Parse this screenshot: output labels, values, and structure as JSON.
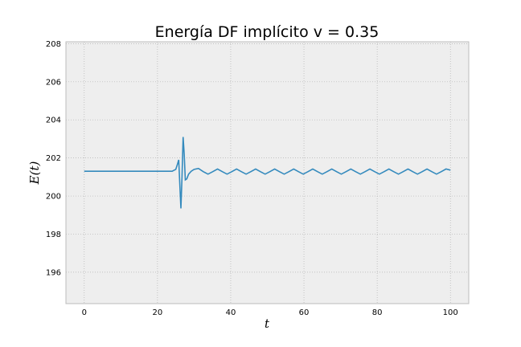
{
  "chart_data": {
    "type": "line",
    "title": "Energía DF implícito v = 0.35",
    "xlabel": "t",
    "ylabel": "E(t)",
    "xlim": [
      -5,
      105
    ],
    "ylim": [
      194.35,
      208.1
    ],
    "xticks": [
      0,
      20,
      40,
      60,
      80,
      100
    ],
    "yticks": [
      196,
      198,
      200,
      202,
      204,
      206,
      208
    ],
    "grid": true,
    "series": [
      {
        "color": "#348ABD",
        "x": [
          0,
          5,
          10,
          15,
          20,
          24,
          25,
          25.5,
          25.8,
          26.1,
          26.4,
          26.7,
          27,
          27.3,
          27.6,
          28,
          28.5,
          29.2,
          30,
          31.2,
          32.5,
          33.8,
          35.1,
          36.4,
          37.7,
          39.0,
          40.3,
          41.6,
          42.9,
          44.2,
          45.5,
          46.8,
          48.1,
          49.4,
          50.7,
          52.0,
          53.3,
          54.6,
          55.9,
          57.2,
          58.5,
          59.8,
          61.1,
          62.4,
          63.7,
          65.0,
          66.3,
          67.6,
          68.9,
          70.2,
          71.5,
          72.8,
          74.1,
          75.4,
          76.7,
          78.0,
          79.3,
          80.6,
          81.9,
          83.2,
          84.5,
          85.8,
          87.1,
          88.4,
          89.7,
          91.0,
          92.3,
          93.6,
          94.9,
          96.2,
          97.5,
          98.8,
          100
        ],
        "values": [
          201.3,
          201.3,
          201.3,
          201.3,
          201.3,
          201.3,
          201.4,
          201.7,
          201.9,
          200.6,
          199.35,
          201.0,
          203.1,
          202.2,
          200.85,
          200.9,
          201.15,
          201.3,
          201.4,
          201.45,
          201.28,
          201.15,
          201.28,
          201.42,
          201.28,
          201.15,
          201.28,
          201.42,
          201.28,
          201.15,
          201.28,
          201.42,
          201.28,
          201.15,
          201.28,
          201.42,
          201.28,
          201.15,
          201.28,
          201.42,
          201.28,
          201.15,
          201.28,
          201.42,
          201.28,
          201.15,
          201.28,
          201.42,
          201.28,
          201.15,
          201.28,
          201.42,
          201.28,
          201.15,
          201.28,
          201.42,
          201.28,
          201.15,
          201.28,
          201.42,
          201.28,
          201.15,
          201.28,
          201.42,
          201.28,
          201.15,
          201.28,
          201.42,
          201.28,
          201.15,
          201.28,
          201.42,
          201.36
        ]
      }
    ]
  }
}
